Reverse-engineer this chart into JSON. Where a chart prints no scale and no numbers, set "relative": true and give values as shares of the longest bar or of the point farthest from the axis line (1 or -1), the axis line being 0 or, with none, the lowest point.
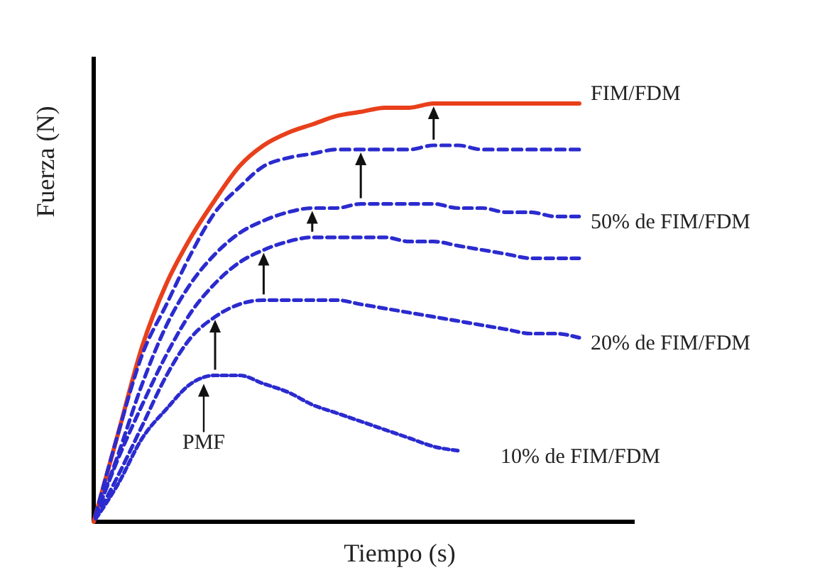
{
  "chart_data": {
    "type": "line",
    "relative": true,
    "xlabel": "Tiempo (s)",
    "ylabel": "Fuerza (N)",
    "categories": [
      null,
      null,
      null,
      null,
      null,
      null,
      null,
      null,
      null,
      null,
      null,
      null,
      null,
      null,
      null,
      null,
      null,
      null,
      null,
      null,
      null
    ],
    "series": [
      {
        "name": "FIM/FDM",
        "color": "#e8401c",
        "line_style": "solid",
        "values": [
          0,
          0.21,
          0.42,
          0.57,
          0.68,
          0.77,
          0.85,
          0.9,
          0.93,
          0.95,
          0.97,
          0.98,
          0.99,
          0.99,
          1.0,
          1.0,
          1.0,
          1.0,
          1.0,
          1.0,
          1.0
        ]
      },
      {
        "color": "#2b2bd0",
        "line_style": "dashed",
        "values": [
          0,
          0.21,
          0.4,
          0.52,
          0.64,
          0.74,
          0.8,
          0.85,
          0.87,
          0.88,
          0.89,
          0.89,
          0.89,
          0.89,
          0.9,
          0.9,
          0.89,
          0.89,
          0.89,
          0.89,
          0.89
        ]
      },
      {
        "name": "50% de FIM/FDM",
        "color": "#2b2bd0",
        "line_style": "dashed",
        "values": [
          0,
          0.16,
          0.33,
          0.47,
          0.57,
          0.64,
          0.69,
          0.72,
          0.74,
          0.75,
          0.75,
          0.76,
          0.76,
          0.76,
          0.76,
          0.75,
          0.75,
          0.74,
          0.74,
          0.73,
          0.73
        ]
      },
      {
        "color": "#2b2bd0",
        "line_style": "dashed",
        "values": [
          0,
          0.15,
          0.28,
          0.4,
          0.5,
          0.57,
          0.62,
          0.65,
          0.67,
          0.68,
          0.68,
          0.68,
          0.68,
          0.67,
          0.67,
          0.66,
          0.65,
          0.64,
          0.63,
          0.63,
          0.63
        ]
      },
      {
        "name": "20% de FIM/FDM",
        "color": "#2b2bd0",
        "line_style": "dashed",
        "values": [
          0,
          0.11,
          0.23,
          0.35,
          0.44,
          0.49,
          0.52,
          0.53,
          0.53,
          0.53,
          0.53,
          0.52,
          0.51,
          0.5,
          0.49,
          0.48,
          0.47,
          0.46,
          0.45,
          0.45,
          0.44
        ]
      },
      {
        "name": "10% de FIM/FDM",
        "color": "#2b2bd0",
        "line_style": "dashed",
        "values": [
          0,
          0.09,
          0.2,
          0.27,
          0.33,
          0.35,
          0.35,
          0.33,
          0.31,
          0.28,
          0.26,
          0.24,
          0.22,
          0.2,
          0.18,
          0.17,
          null,
          null,
          null,
          null,
          null
        ]
      }
    ],
    "annotations": [
      "PMF"
    ]
  }
}
